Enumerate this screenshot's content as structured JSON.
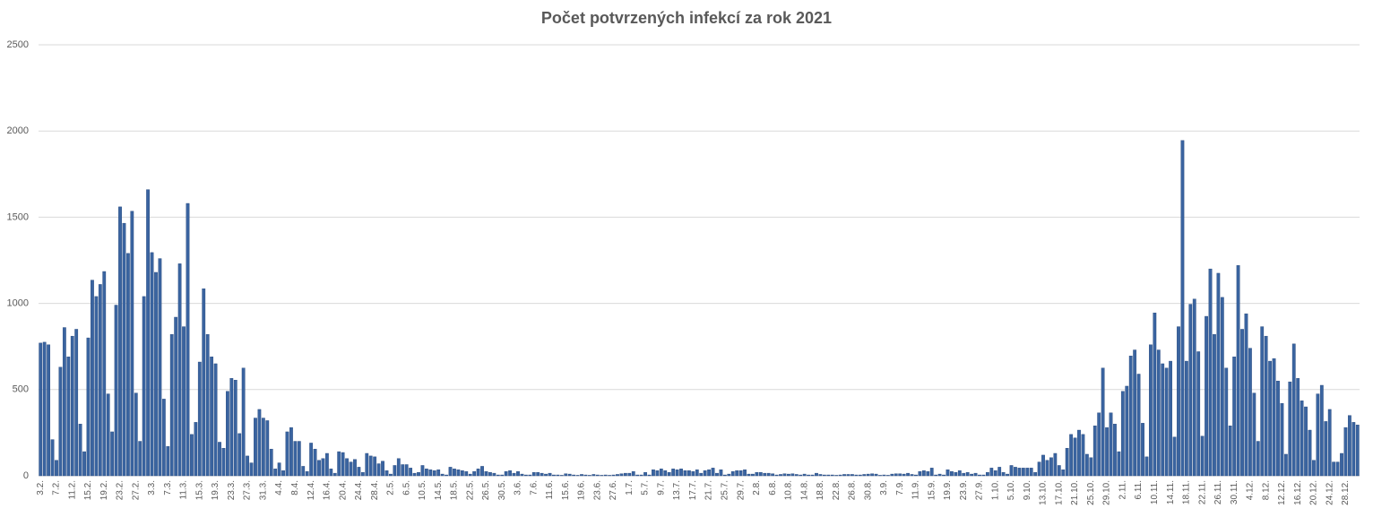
{
  "chart_data": {
    "type": "bar",
    "title": "Počet potvrzených infekcí za rok 2021",
    "color": "#3a64a0",
    "grid": true,
    "ylim": [
      0,
      2500
    ],
    "yticks": [
      0,
      500,
      1000,
      1500,
      2000,
      2500
    ],
    "categories": [
      "3.2.",
      null,
      null,
      null,
      "7.2.",
      null,
      null,
      null,
      "11.2.",
      null,
      null,
      null,
      "15.2.",
      null,
      null,
      null,
      "19.2.",
      null,
      null,
      null,
      "23.2.",
      null,
      null,
      null,
      "27.2.",
      null,
      null,
      null,
      "3.3.",
      null,
      null,
      null,
      "7.3.",
      null,
      null,
      null,
      "11.3.",
      null,
      null,
      null,
      "15.3.",
      null,
      null,
      null,
      "19.3.",
      null,
      null,
      null,
      "23.3.",
      null,
      null,
      null,
      "27.3.",
      null,
      null,
      null,
      "31.3.",
      null,
      null,
      null,
      "4.4.",
      null,
      null,
      null,
      "8.4.",
      null,
      null,
      null,
      "12.4.",
      null,
      null,
      null,
      "16.4.",
      null,
      null,
      null,
      "20.4.",
      null,
      null,
      null,
      "24.4.",
      null,
      null,
      null,
      "28.4.",
      null,
      null,
      null,
      "2.5.",
      null,
      null,
      null,
      "6.5.",
      null,
      null,
      null,
      "10.5.",
      null,
      null,
      null,
      "14.5.",
      null,
      null,
      null,
      "18.5.",
      null,
      null,
      null,
      "22.5.",
      null,
      null,
      null,
      "26.5.",
      null,
      null,
      null,
      "30.5.",
      null,
      null,
      null,
      "3.6.",
      null,
      null,
      null,
      "7.6.",
      null,
      null,
      null,
      "11.6.",
      null,
      null,
      null,
      "15.6.",
      null,
      null,
      null,
      "19.6.",
      null,
      null,
      null,
      "23.6.",
      null,
      null,
      null,
      "27.6.",
      null,
      null,
      null,
      "1.7.",
      null,
      null,
      null,
      "5.7.",
      null,
      null,
      null,
      "9.7.",
      null,
      null,
      null,
      "13.7.",
      null,
      null,
      null,
      "17.7.",
      null,
      null,
      null,
      "21.7.",
      null,
      null,
      null,
      "25.7.",
      null,
      null,
      null,
      "29.7.",
      null,
      null,
      null,
      "2.8.",
      null,
      null,
      null,
      "6.8.",
      null,
      null,
      null,
      "10.8.",
      null,
      null,
      null,
      "14.8.",
      null,
      null,
      null,
      "18.8.",
      null,
      null,
      null,
      "22.8.",
      null,
      null,
      null,
      "26.8.",
      null,
      null,
      null,
      "30.8.",
      null,
      null,
      null,
      "3.9.",
      null,
      null,
      null,
      "7.9.",
      null,
      null,
      null,
      "11.9.",
      null,
      null,
      null,
      "15.9.",
      null,
      null,
      null,
      "19.9.",
      null,
      null,
      null,
      "23.9.",
      null,
      null,
      null,
      "27.9.",
      null,
      null,
      null,
      "1.10.",
      null,
      null,
      null,
      "5.10.",
      null,
      null,
      null,
      "9.10.",
      null,
      null,
      null,
      "13.10.",
      null,
      null,
      null,
      "17.10.",
      null,
      null,
      null,
      "21.10.",
      null,
      null,
      null,
      "25.10.",
      null,
      null,
      null,
      "29.10.",
      null,
      null,
      null,
      "2.11.",
      null,
      null,
      null,
      "6.11.",
      null,
      null,
      null,
      "10.11.",
      null,
      null,
      null,
      "14.11.",
      null,
      null,
      null,
      "18.11.",
      null,
      null,
      null,
      "22.11.",
      null,
      null,
      null,
      "26.11.",
      null,
      null,
      null,
      "30.11.",
      null,
      null,
      null,
      "4.12.",
      null,
      null,
      null,
      "8.12.",
      null,
      null,
      null,
      "12.12.",
      null,
      null,
      null,
      "16.12.",
      null,
      null,
      null,
      "20.12.",
      null,
      null,
      null,
      "24.12.",
      null,
      null,
      null,
      "28.12.",
      null,
      null,
      null
    ],
    "values": [
      770,
      775,
      760,
      210,
      90,
      630,
      860,
      690,
      810,
      850,
      300,
      140,
      800,
      1135,
      1040,
      1110,
      1185,
      475,
      255,
      990,
      1560,
      1465,
      1290,
      1535,
      480,
      200,
      1040,
      1660,
      1295,
      1180,
      1260,
      445,
      170,
      820,
      920,
      1230,
      865,
      1580,
      240,
      310,
      660,
      1085,
      820,
      690,
      650,
      195,
      160,
      490,
      565,
      555,
      245,
      625,
      115,
      75,
      335,
      385,
      335,
      320,
      155,
      40,
      75,
      30,
      255,
      280,
      200,
      200,
      55,
      25,
      190,
      155,
      90,
      100,
      130,
      40,
      15,
      140,
      135,
      100,
      80,
      95,
      50,
      20,
      130,
      115,
      110,
      70,
      85,
      30,
      10,
      60,
      100,
      65,
      65,
      45,
      15,
      20,
      60,
      40,
      35,
      30,
      35,
      10,
      5,
      50,
      40,
      35,
      30,
      25,
      10,
      25,
      40,
      55,
      25,
      20,
      15,
      5,
      5,
      25,
      30,
      15,
      25,
      10,
      5,
      5,
      20,
      20,
      15,
      10,
      15,
      5,
      5,
      3,
      12,
      10,
      5,
      3,
      8,
      5,
      3,
      8,
      5,
      3,
      5,
      3,
      5,
      8,
      12,
      15,
      15,
      25,
      5,
      5,
      20,
      5,
      35,
      30,
      40,
      30,
      20,
      40,
      35,
      40,
      30,
      30,
      25,
      35,
      15,
      30,
      35,
      45,
      15,
      35,
      5,
      10,
      25,
      30,
      30,
      35,
      10,
      10,
      20,
      20,
      15,
      15,
      12,
      5,
      8,
      12,
      10,
      12,
      8,
      5,
      10,
      5,
      5,
      15,
      8,
      5,
      5,
      5,
      3,
      5,
      8,
      8,
      8,
      5,
      5,
      8,
      10,
      12,
      10,
      3,
      5,
      3,
      10,
      12,
      12,
      10,
      15,
      8,
      5,
      25,
      30,
      25,
      45,
      5,
      10,
      5,
      35,
      25,
      20,
      30,
      15,
      20,
      10,
      15,
      5,
      5,
      20,
      45,
      30,
      50,
      20,
      10,
      60,
      50,
      45,
      45,
      45,
      45,
      20,
      80,
      120,
      90,
      105,
      130,
      60,
      35,
      160,
      240,
      220,
      265,
      240,
      125,
      105,
      290,
      365,
      625,
      280,
      365,
      300,
      140,
      490,
      520,
      695,
      730,
      590,
      305,
      110,
      760,
      945,
      730,
      650,
      625,
      665,
      225,
      865,
      1945,
      665,
      995,
      1025,
      720,
      230,
      925,
      1200,
      820,
      1175,
      1035,
      625,
      290,
      690,
      1220,
      850,
      940,
      740,
      480,
      200,
      865,
      810,
      665,
      680,
      550,
      420,
      125,
      545,
      765,
      565,
      435,
      400,
      265,
      90,
      475,
      525,
      315,
      385,
      80,
      80,
      130,
      280,
      350,
      310,
      295
    ]
  }
}
